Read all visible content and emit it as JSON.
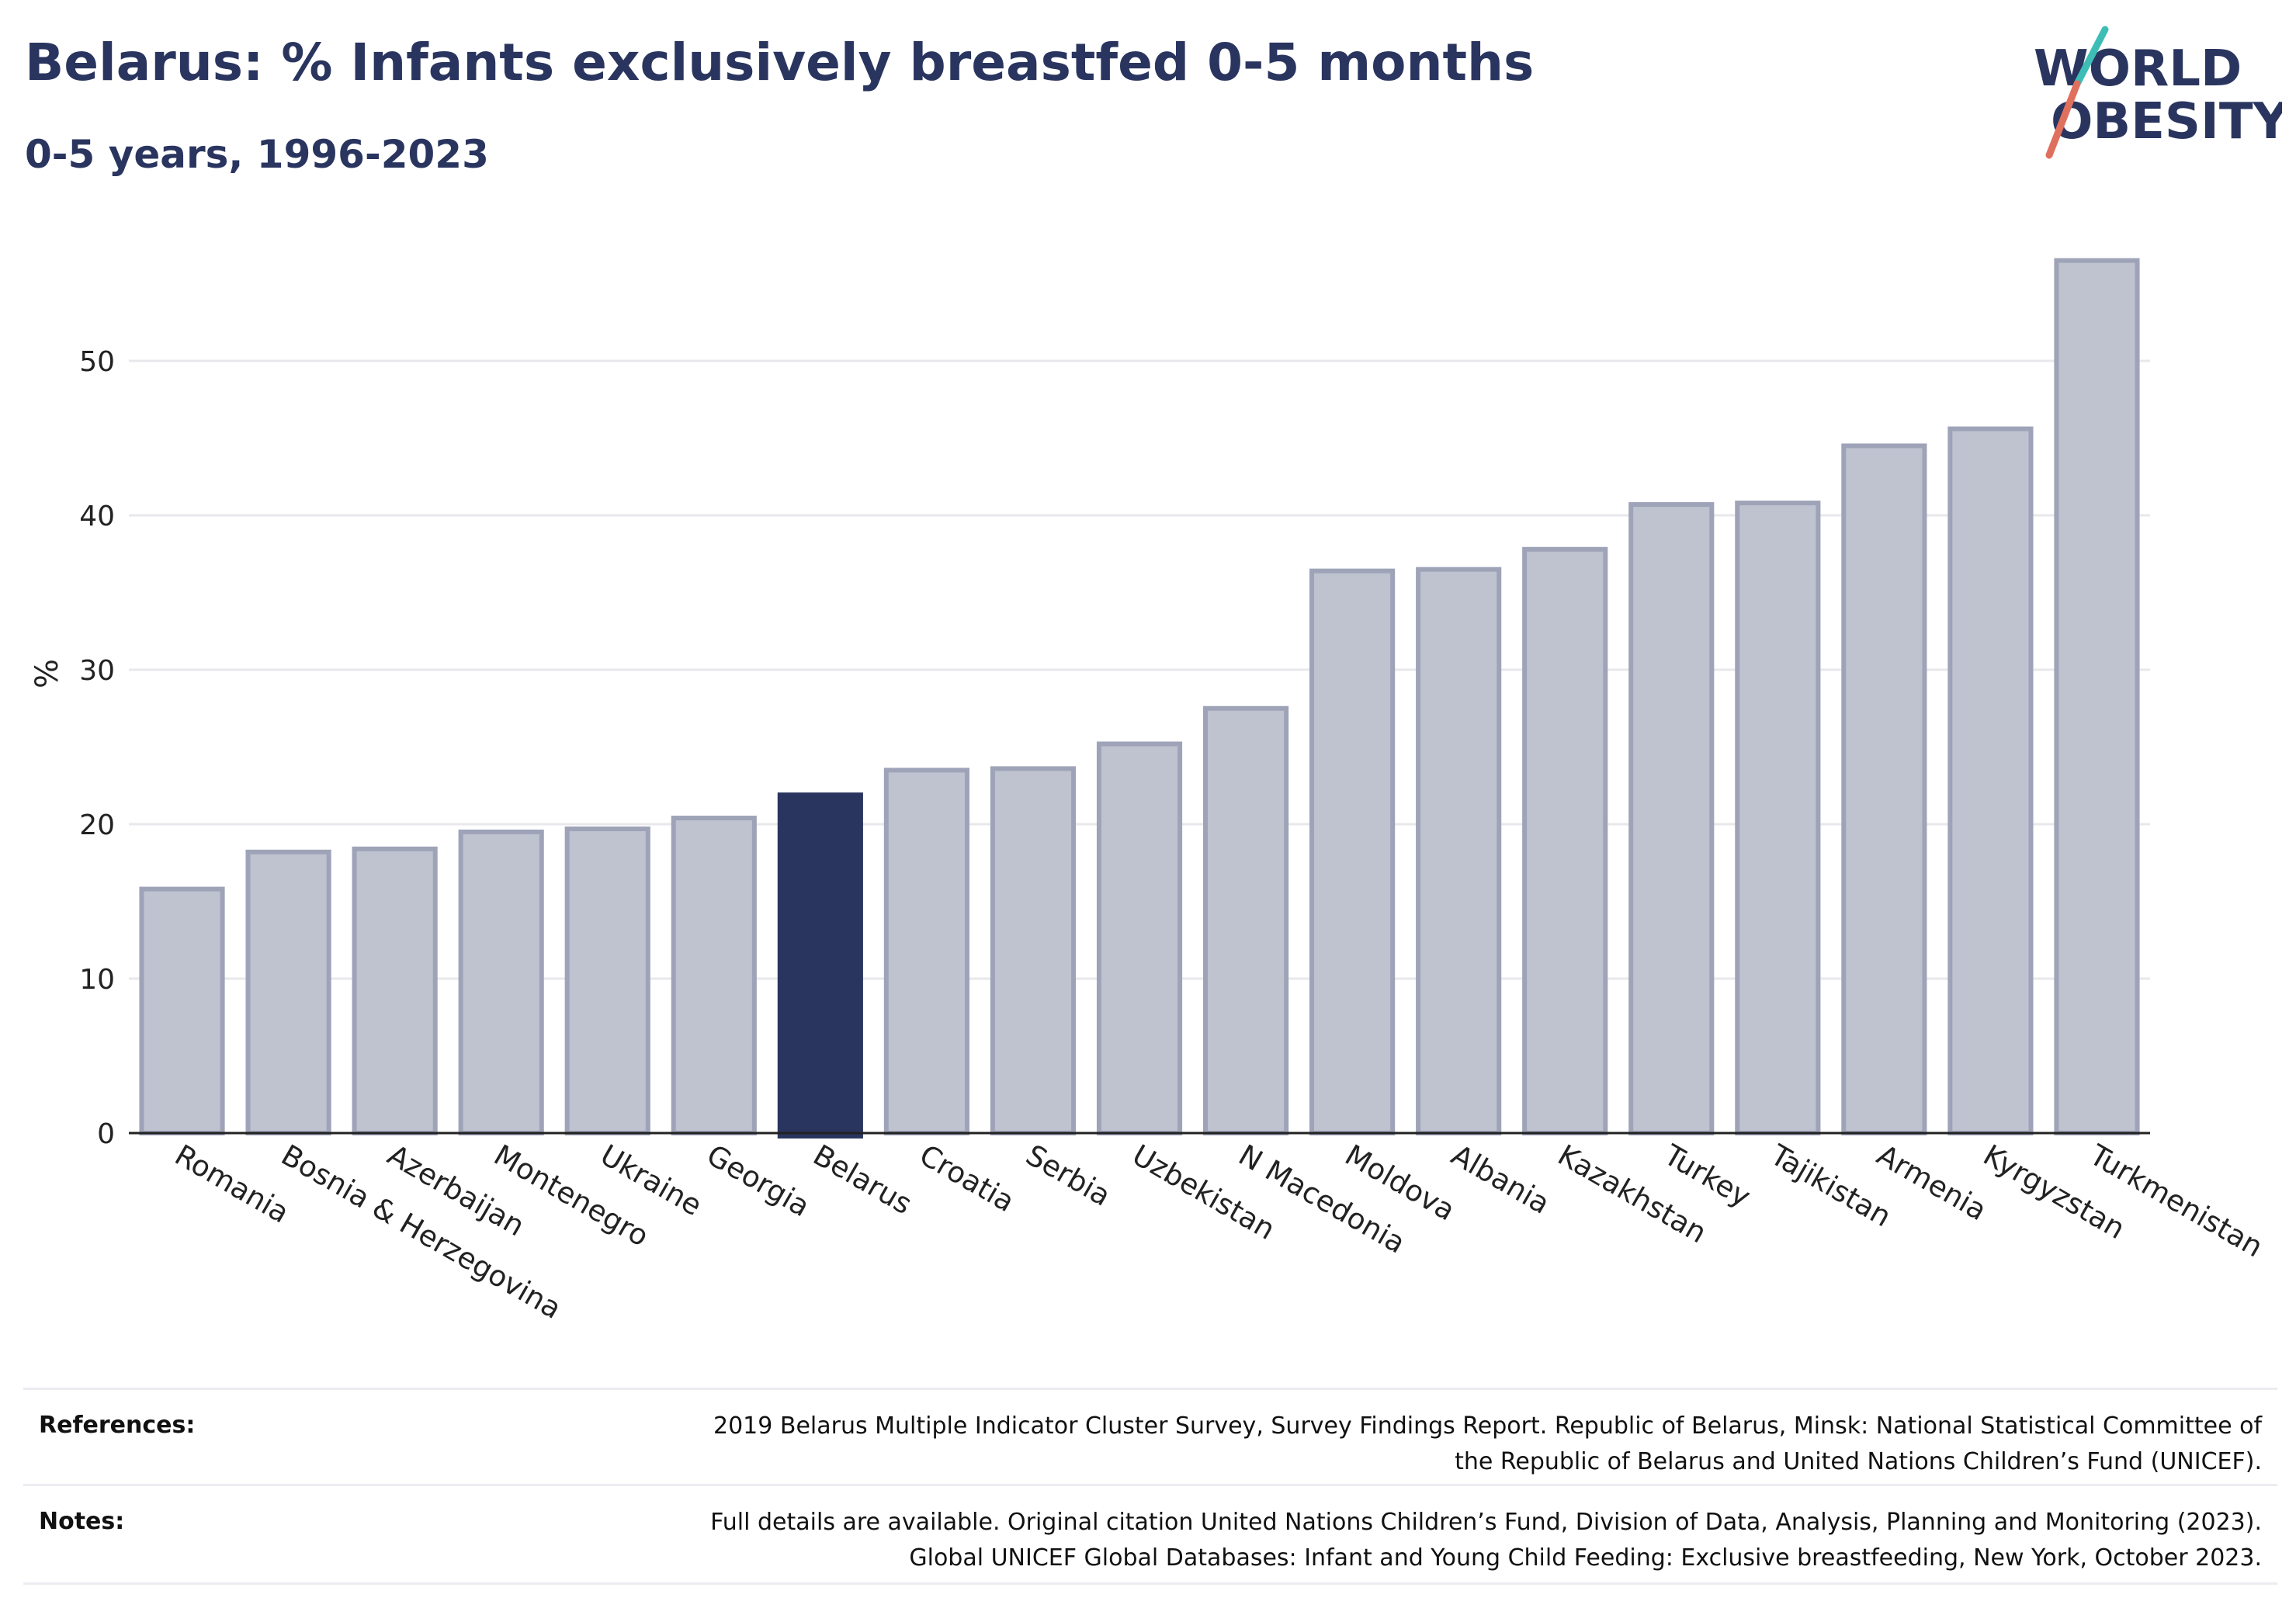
{
  "header": {
    "title": "Belarus: % Infants exclusively breastfed 0-5 months",
    "subtitle": "0-5 years, 1996-2023",
    "logo_line1": "WORLD",
    "logo_line2": "OBESITY"
  },
  "colors": {
    "highlight": "#2a355f",
    "bar_fill": "#bfc2cf",
    "bar_stroke": "#9ea3b8",
    "grid": "#e8e8ec",
    "logo_teal": "#3dbdb5",
    "logo_coral": "#e0705e"
  },
  "chart_data": {
    "type": "bar",
    "title": "Belarus: % Infants exclusively breastfed 0-5 months",
    "subtitle": "0-5 years, 1996-2023",
    "ylabel": "%",
    "xlabel": "",
    "ylim": [
      0,
      58
    ],
    "yticks": [
      0,
      10,
      20,
      30,
      40,
      50
    ],
    "grid": true,
    "highlight_category": "Belarus",
    "categories": [
      "Romania",
      "Bosnia & Herzegovina",
      "Azerbaijan",
      "Montenegro",
      "Ukraine",
      "Georgia",
      "Belarus",
      "Croatia",
      "Serbia",
      "Uzbekistan",
      "N Macedonia",
      "Moldova",
      "Albania",
      "Kazakhstan",
      "Turkey",
      "Tajikistan",
      "Armenia",
      "Kyrgyzstan",
      "Turkmenistan"
    ],
    "values": [
      15.8,
      18.2,
      18.4,
      19.5,
      19.7,
      20.4,
      21.9,
      23.5,
      23.6,
      25.2,
      27.5,
      36.4,
      36.5,
      37.8,
      40.7,
      40.8,
      44.5,
      45.6,
      56.5
    ]
  },
  "footer": {
    "references_label": "References:",
    "references_lines": [
      "2019 Belarus Multiple Indicator Cluster Survey, Survey Findings Report. Republic of Belarus, Minsk: National Statistical Committee of",
      "the Republic of Belarus and United Nations Children’s Fund (UNICEF)."
    ],
    "notes_label": "Notes:",
    "notes_lines": [
      "Full details are available. Original citation United Nations Children’s Fund, Division of Data, Analysis, Planning and Monitoring (2023).",
      "Global UNICEF Global Databases: Infant and Young Child Feeding: Exclusive breastfeeding, New York, October 2023."
    ]
  }
}
